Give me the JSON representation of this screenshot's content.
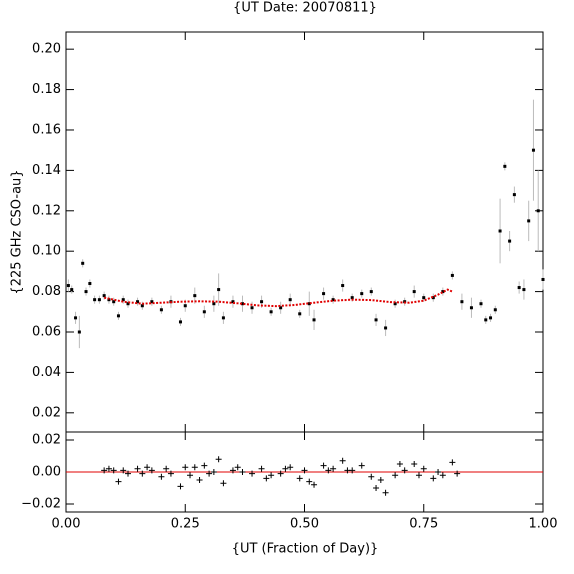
{
  "chart_data": [
    {
      "type": "scatter",
      "title": "{UT Date: 20070811}",
      "ylabel": "{225 GHz CSO-au}",
      "x": [
        0.005,
        0.012,
        0.02,
        0.028,
        0.035,
        0.042,
        0.05,
        0.06,
        0.07,
        0.08,
        0.09,
        0.1,
        0.11,
        0.12,
        0.13,
        0.15,
        0.16,
        0.18,
        0.2,
        0.22,
        0.24,
        0.25,
        0.27,
        0.29,
        0.31,
        0.32,
        0.33,
        0.35,
        0.37,
        0.39,
        0.41,
        0.43,
        0.45,
        0.47,
        0.49,
        0.51,
        0.52,
        0.54,
        0.56,
        0.58,
        0.6,
        0.62,
        0.64,
        0.65,
        0.67,
        0.69,
        0.71,
        0.73,
        0.75,
        0.77,
        0.79,
        0.81,
        0.83,
        0.85,
        0.87,
        0.88,
        0.89,
        0.9,
        0.91,
        0.92,
        0.93,
        0.94,
        0.95,
        0.96,
        0.97,
        0.98,
        0.99,
        1.0
      ],
      "values": [
        0.083,
        0.081,
        0.067,
        0.06,
        0.094,
        0.08,
        0.084,
        0.076,
        0.076,
        0.078,
        0.076,
        0.075,
        0.068,
        0.076,
        0.074,
        0.075,
        0.073,
        0.075,
        0.071,
        0.075,
        0.065,
        0.073,
        0.078,
        0.07,
        0.074,
        0.081,
        0.067,
        0.075,
        0.074,
        0.072,
        0.075,
        0.07,
        0.072,
        0.076,
        0.069,
        0.074,
        0.066,
        0.079,
        0.076,
        0.083,
        0.077,
        0.079,
        0.08,
        0.066,
        0.062,
        0.074,
        0.075,
        0.08,
        0.077,
        0.077,
        0.08,
        0.088,
        0.075,
        0.072,
        0.074,
        0.066,
        0.067,
        0.071,
        0.11,
        0.142,
        0.105,
        0.128,
        0.082,
        0.081,
        0.115,
        0.15,
        0.12,
        0.086
      ],
      "errors": [
        0.003,
        0.002,
        0.003,
        0.008,
        0.002,
        0.002,
        0.002,
        0.002,
        0.002,
        0.002,
        0.002,
        0.002,
        0.002,
        0.002,
        0.002,
        0.002,
        0.002,
        0.002,
        0.002,
        0.003,
        0.002,
        0.003,
        0.004,
        0.003,
        0.004,
        0.008,
        0.003,
        0.003,
        0.004,
        0.003,
        0.003,
        0.002,
        0.003,
        0.003,
        0.002,
        0.006,
        0.005,
        0.003,
        0.002,
        0.003,
        0.002,
        0.002,
        0.002,
        0.003,
        0.004,
        0.002,
        0.002,
        0.003,
        0.002,
        0.002,
        0.002,
        0.002,
        0.004,
        0.005,
        0.002,
        0.002,
        0.002,
        0.002,
        0.016,
        0.002,
        0.005,
        0.004,
        0.003,
        0.005,
        0.01,
        0.025,
        0.02,
        0.005
      ],
      "color": "#000000",
      "error_color": "#bbbbbb",
      "fit": {
        "x": [
          0.08,
          0.12,
          0.16,
          0.2,
          0.24,
          0.28,
          0.32,
          0.36,
          0.4,
          0.44,
          0.48,
          0.52,
          0.56,
          0.6,
          0.64,
          0.68,
          0.72,
          0.75,
          0.78,
          0.8,
          0.81
        ],
        "values": [
          0.077,
          0.075,
          0.074,
          0.0745,
          0.075,
          0.0752,
          0.075,
          0.0742,
          0.0732,
          0.0728,
          0.0734,
          0.0745,
          0.0755,
          0.076,
          0.0758,
          0.0748,
          0.0745,
          0.0755,
          0.0785,
          0.081,
          0.08
        ],
        "color": "#e00000"
      },
      "xlim": [
        0,
        1
      ],
      "ylim": [
        0.0105,
        0.2085
      ],
      "xticks": [
        {
          "value": 0,
          "label": "0.00"
        },
        {
          "value": 0.25,
          "label": "0.25"
        },
        {
          "value": 0.5,
          "label": "0.50"
        },
        {
          "value": 0.75,
          "label": "0.75"
        },
        {
          "value": 1,
          "label": "1.00"
        }
      ],
      "yticks": [
        {
          "value": 0.02,
          "label": "0.02"
        },
        {
          "value": 0.04,
          "label": "0.04"
        },
        {
          "value": 0.06,
          "label": "0.06"
        },
        {
          "value": 0.08,
          "label": "0.08"
        },
        {
          "value": 0.1,
          "label": "0.10"
        },
        {
          "value": 0.12,
          "label": "0.12"
        },
        {
          "value": 0.14,
          "label": "0.14"
        },
        {
          "value": 0.16,
          "label": "0.16"
        },
        {
          "value": 0.18,
          "label": "0.18"
        },
        {
          "value": 0.2,
          "label": "0.20"
        }
      ]
    },
    {
      "type": "residual",
      "xlabel": "{UT (Fraction of Day)}",
      "x": [
        0.08,
        0.09,
        0.1,
        0.11,
        0.12,
        0.13,
        0.15,
        0.16,
        0.17,
        0.18,
        0.2,
        0.21,
        0.22,
        0.24,
        0.25,
        0.26,
        0.27,
        0.28,
        0.29,
        0.3,
        0.31,
        0.32,
        0.33,
        0.35,
        0.36,
        0.37,
        0.39,
        0.41,
        0.42,
        0.43,
        0.45,
        0.46,
        0.47,
        0.49,
        0.5,
        0.51,
        0.52,
        0.54,
        0.55,
        0.56,
        0.58,
        0.59,
        0.6,
        0.62,
        0.64,
        0.65,
        0.66,
        0.67,
        0.69,
        0.7,
        0.71,
        0.73,
        0.74,
        0.75,
        0.77,
        0.78,
        0.79,
        0.81,
        0.82
      ],
      "values": [
        0.001,
        0.002,
        0.001,
        -0.006,
        0.001,
        -0.001,
        0.002,
        -0.001,
        0.003,
        0.001,
        -0.003,
        0.002,
        -0.001,
        -0.009,
        0.003,
        -0.002,
        0.003,
        -0.005,
        0.004,
        -0.001,
        0,
        0.008,
        -0.007,
        0.001,
        0.003,
        0,
        -0.001,
        0.002,
        -0.004,
        -0.002,
        -0.001,
        0.002,
        0.003,
        -0.004,
        0.001,
        -0.006,
        -0.008,
        0.004,
        0.001,
        0.002,
        0.007,
        0.001,
        0.001,
        0.004,
        -0.003,
        -0.01,
        -0.005,
        -0.013,
        -0.002,
        0.005,
        0.001,
        0.005,
        -0.002,
        0.002,
        -0.004,
        0,
        -0.002,
        0.006,
        -0.001
      ],
      "line_color": "#e00000",
      "marker_color": "#000000",
      "xlim": [
        0,
        1
      ],
      "ylim": [
        -0.025,
        0.025
      ],
      "xticks": [
        {
          "value": 0,
          "label": "0.00"
        },
        {
          "value": 0.25,
          "label": "0.25"
        },
        {
          "value": 0.5,
          "label": "0.50"
        },
        {
          "value": 0.75,
          "label": "0.75"
        },
        {
          "value": 1,
          "label": "1.00"
        }
      ],
      "yticks": [
        {
          "value": -0.02,
          "label": "−0.02"
        },
        {
          "value": 0,
          "label": "0.00"
        },
        {
          "value": 0.02,
          "label": "0.02"
        }
      ]
    }
  ]
}
